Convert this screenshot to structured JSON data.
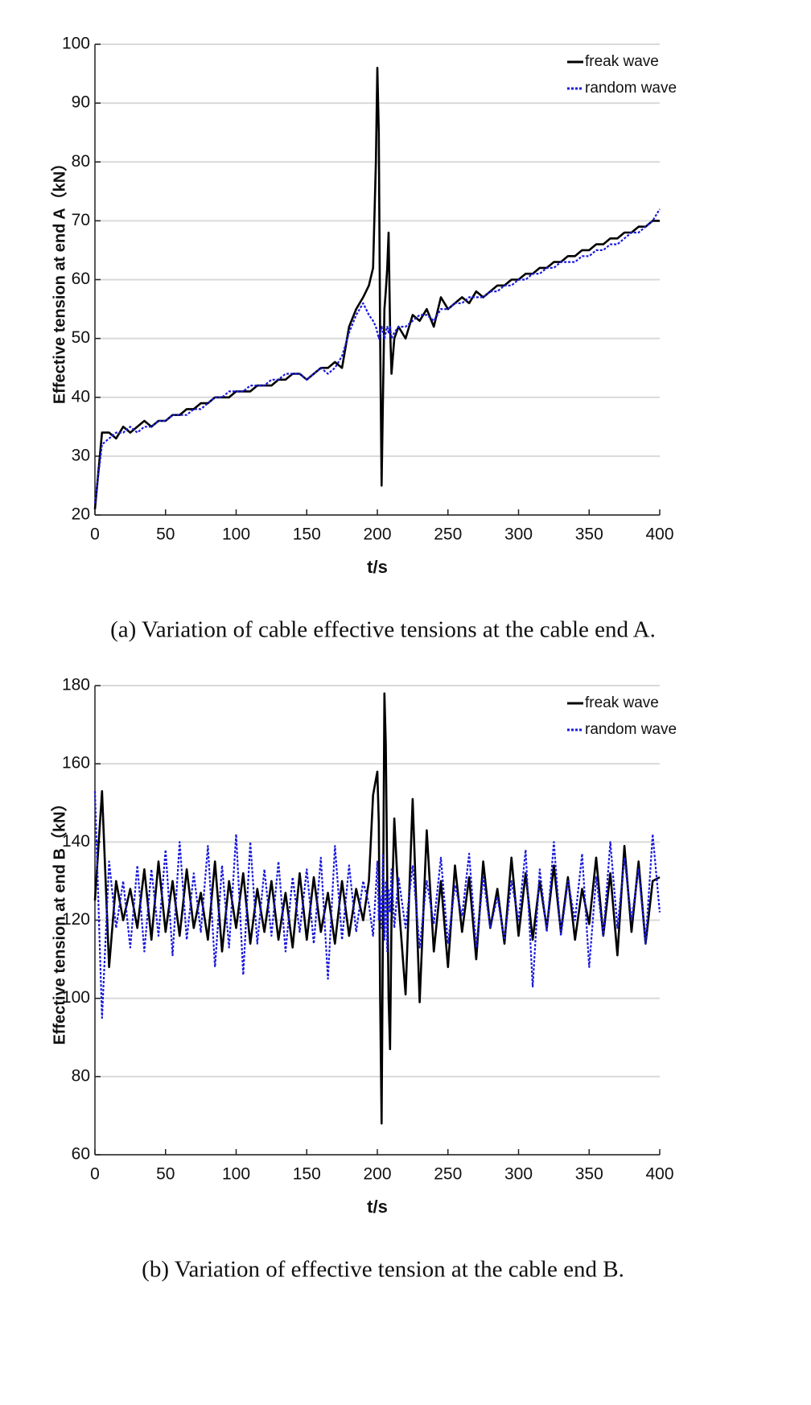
{
  "chart_data": [
    {
      "type": "line",
      "ylabel": "Effective tension at end A（kN）",
      "xlabel": "t/s",
      "caption": "(a) Variation of cable effective tensions at the cable end A.",
      "xlim": [
        0,
        400
      ],
      "xticks": [
        0,
        50,
        100,
        150,
        200,
        250,
        300,
        350,
        400
      ],
      "ylim": [
        20,
        100
      ],
      "yticks": [
        20,
        30,
        40,
        50,
        60,
        70,
        80,
        90,
        100
      ],
      "grid": true,
      "legend": "upper right",
      "x": [
        0,
        5,
        10,
        15,
        20,
        25,
        30,
        35,
        40,
        45,
        50,
        55,
        60,
        65,
        70,
        75,
        80,
        85,
        90,
        95,
        100,
        105,
        110,
        115,
        120,
        125,
        130,
        135,
        140,
        145,
        150,
        155,
        160,
        165,
        170,
        175,
        180,
        185,
        190,
        194,
        197,
        199,
        200,
        201,
        202,
        203,
        204,
        205,
        206,
        207,
        208,
        209,
        210,
        212,
        215,
        220,
        225,
        230,
        235,
        240,
        245,
        250,
        255,
        260,
        265,
        270,
        275,
        280,
        285,
        290,
        295,
        300,
        305,
        310,
        315,
        320,
        325,
        330,
        335,
        340,
        345,
        350,
        355,
        360,
        365,
        370,
        375,
        380,
        385,
        390,
        395,
        400
      ],
      "series": [
        {
          "name": "freak wave",
          "color": "#000000",
          "linestyle": "solid",
          "values": [
            21,
            34,
            34,
            33,
            35,
            34,
            35,
            36,
            35,
            36,
            36,
            37,
            37,
            38,
            38,
            39,
            39,
            40,
            40,
            40,
            41,
            41,
            41,
            42,
            42,
            42,
            43,
            43,
            44,
            44,
            43,
            44,
            45,
            45,
            46,
            45,
            52,
            55,
            57,
            59,
            62,
            80,
            96,
            85,
            50,
            25,
            40,
            55,
            58,
            62,
            68,
            52,
            44,
            50,
            52,
            50,
            54,
            53,
            55,
            52,
            57,
            55,
            56,
            57,
            56,
            58,
            57,
            58,
            59,
            59,
            60,
            60,
            61,
            61,
            62,
            62,
            63,
            63,
            64,
            64,
            65,
            65,
            66,
            66,
            67,
            67,
            68,
            68,
            69,
            69,
            70,
            70
          ]
        },
        {
          "name": "random wave",
          "color": "#1a1adc",
          "linestyle": "dotted",
          "values": [
            22,
            32,
            33,
            34,
            34,
            35,
            34,
            35,
            35,
            36,
            36,
            37,
            37,
            37,
            38,
            38,
            39,
            40,
            40,
            41,
            41,
            41,
            42,
            42,
            42,
            43,
            43,
            44,
            44,
            44,
            43,
            44,
            45,
            44,
            45,
            47,
            51,
            54,
            56,
            54,
            53,
            52,
            51,
            50,
            51,
            52,
            51,
            50,
            51,
            52,
            51,
            52,
            50,
            51,
            52,
            52,
            53,
            54,
            54,
            53,
            55,
            55,
            56,
            56,
            57,
            57,
            57,
            58,
            58,
            59,
            59,
            60,
            60,
            61,
            61,
            62,
            62,
            63,
            63,
            63,
            64,
            64,
            65,
            65,
            66,
            66,
            67,
            68,
            68,
            69,
            70,
            72
          ]
        }
      ]
    },
    {
      "type": "line",
      "ylabel": "Effective tension at end B（kN）",
      "xlabel": "t/s",
      "caption": "(b) Variation of effective tension at the cable end B.",
      "xlim": [
        0,
        400
      ],
      "xticks": [
        0,
        50,
        100,
        150,
        200,
        250,
        300,
        350,
        400
      ],
      "ylim": [
        60,
        180
      ],
      "yticks": [
        60,
        80,
        100,
        120,
        140,
        160,
        180
      ],
      "grid": true,
      "legend": "upper right",
      "x": [
        0,
        5,
        10,
        15,
        20,
        25,
        30,
        35,
        40,
        45,
        50,
        55,
        60,
        65,
        70,
        75,
        80,
        85,
        90,
        95,
        100,
        105,
        110,
        115,
        120,
        125,
        130,
        135,
        140,
        145,
        150,
        155,
        160,
        165,
        170,
        175,
        180,
        185,
        190,
        194,
        197,
        199,
        200,
        201,
        202,
        203,
        204,
        205,
        206,
        207,
        208,
        209,
        210,
        212,
        215,
        220,
        225,
        230,
        235,
        240,
        245,
        250,
        255,
        260,
        265,
        270,
        275,
        280,
        285,
        290,
        295,
        300,
        305,
        310,
        315,
        320,
        325,
        330,
        335,
        340,
        345,
        350,
        355,
        360,
        365,
        370,
        375,
        380,
        385,
        390,
        395,
        400
      ],
      "series": [
        {
          "name": "freak wave",
          "color": "#000000",
          "linestyle": "solid",
          "values": [
            125,
            153,
            108,
            130,
            120,
            128,
            118,
            133,
            115,
            135,
            117,
            130,
            116,
            133,
            118,
            127,
            115,
            135,
            112,
            130,
            118,
            132,
            114,
            128,
            117,
            130,
            115,
            127,
            113,
            132,
            115,
            131,
            117,
            127,
            114,
            130,
            116,
            128,
            120,
            130,
            152,
            156,
            158,
            145,
            100,
            68,
            120,
            178,
            165,
            130,
            100,
            87,
            120,
            146,
            125,
            101,
            151,
            99,
            143,
            112,
            130,
            108,
            134,
            117,
            131,
            110,
            135,
            118,
            128,
            114,
            136,
            116,
            132,
            115,
            130,
            118,
            134,
            117,
            131,
            115,
            128,
            119,
            136,
            116,
            132,
            111,
            139,
            117,
            135,
            114,
            130,
            131
          ]
        },
        {
          "name": "random wave",
          "color": "#1a1adc",
          "linestyle": "dotted",
          "values": [
            153,
            95,
            135,
            118,
            130,
            113,
            134,
            112,
            133,
            116,
            138,
            111,
            140,
            115,
            132,
            117,
            139,
            108,
            134,
            113,
            142,
            106,
            140,
            114,
            133,
            116,
            135,
            112,
            131,
            117,
            133,
            114,
            136,
            105,
            139,
            115,
            134,
            117,
            130,
            124,
            116,
            128,
            135,
            120,
            126,
            118,
            137,
            115,
            130,
            112,
            128,
            122,
            133,
            118,
            131,
            118,
            134,
            113,
            130,
            119,
            136,
            114,
            129,
            121,
            137,
            113,
            131,
            118,
            126,
            115,
            130,
            120,
            138,
            103,
            133,
            117,
            140,
            116,
            130,
            120,
            137,
            108,
            131,
            116,
            140,
            118,
            136,
            120,
            133,
            114,
            142,
            122
          ]
        }
      ]
    }
  ]
}
